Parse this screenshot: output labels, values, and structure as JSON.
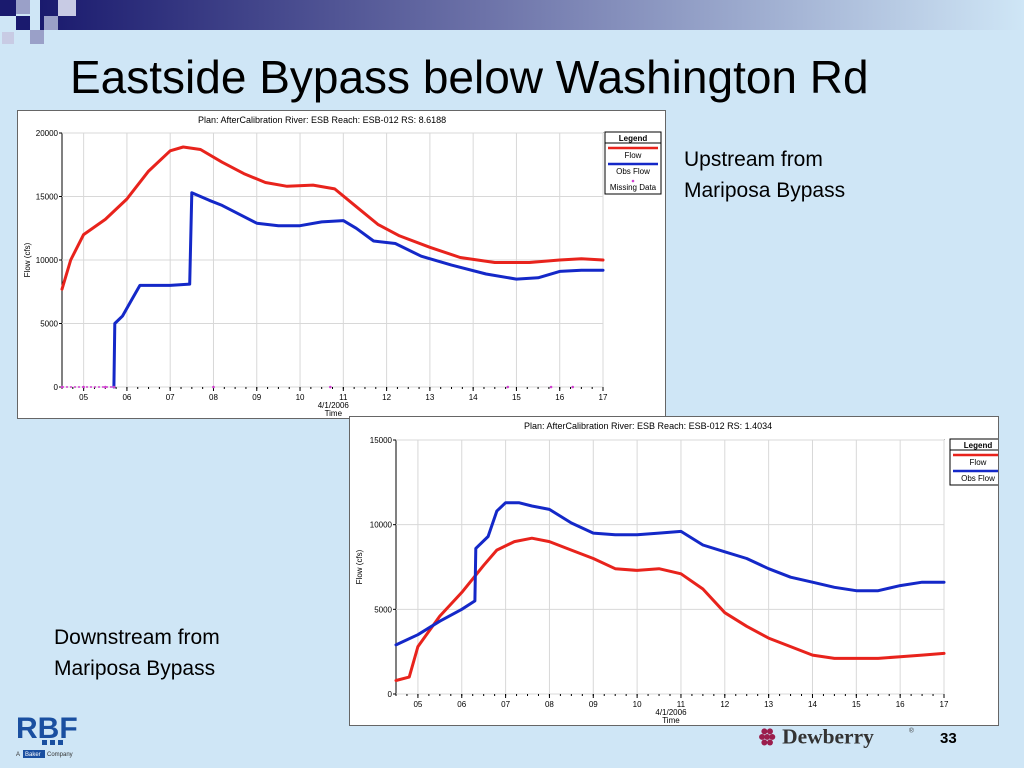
{
  "slide": {
    "title": "Eastside Bypass below Washington Rd",
    "caption_upstream": [
      "Upstream from",
      "Mariposa Bypass"
    ],
    "caption_downstream": [
      "Downstream from",
      "Mariposa Bypass"
    ],
    "page_number": "33",
    "rbf": {
      "logo_text": "RBF",
      "tagline_prefix": "A",
      "tagline_brand": "Baker",
      "tagline_suffix": "Company"
    },
    "dewberry": {
      "logo_text": "Dewberry",
      "registered_mark": "®"
    }
  },
  "colors": {
    "background": "#cfe6f6",
    "flow": "#e8231c",
    "obs_flow": "#1428c8",
    "missing": "#d040d0",
    "title_bar": "#1a1a6e"
  },
  "chart_data": [
    {
      "type": "line",
      "title": "Plan: AfterCalibration    River: ESB    Reach: ESB-012    RS: 8.6188",
      "xlabel": "Time",
      "date_label": "4/1/2006",
      "ylabel": "Flow (cfs)",
      "x_ticks": [
        "05",
        "06",
        "07",
        "08",
        "09",
        "10",
        "11",
        "12",
        "13",
        "14",
        "15",
        "16",
        "17"
      ],
      "xlim": [
        4.5,
        17
      ],
      "ylim": [
        0,
        20000
      ],
      "y_ticks": [
        0,
        5000,
        10000,
        15000,
        20000
      ],
      "grid": true,
      "legend_title": "Legend",
      "legend_position": "top-right",
      "series": [
        {
          "name": "Flow",
          "color": "#e8231c",
          "x": [
            4.5,
            4.7,
            5.0,
            5.5,
            6.0,
            6.5,
            7.0,
            7.3,
            7.7,
            8.2,
            8.7,
            9.2,
            9.7,
            10.3,
            10.8,
            11.3,
            11.8,
            12.3,
            13.0,
            13.7,
            14.5,
            15.3,
            16.0,
            16.5,
            17.0
          ],
          "y": [
            7700,
            10000,
            12000,
            13200,
            14800,
            17000,
            18600,
            18900,
            18700,
            17700,
            16800,
            16100,
            15800,
            15900,
            15600,
            14200,
            12800,
            11900,
            11000,
            10200,
            9800,
            9800,
            10000,
            10100,
            10000
          ]
        },
        {
          "name": "Obs Flow",
          "color": "#1428c8",
          "x": [
            5.7,
            5.72,
            5.9,
            6.1,
            6.3,
            6.5,
            7.0,
            7.45,
            7.5,
            7.9,
            8.2,
            8.6,
            9.0,
            9.5,
            10.0,
            10.5,
            11.0,
            11.3,
            11.7,
            12.2,
            12.8,
            13.5,
            14.3,
            15.0,
            15.5,
            16.0,
            16.5,
            17.0
          ],
          "y": [
            0,
            5000,
            5600,
            6800,
            8000,
            8000,
            8000,
            8100,
            15300,
            14700,
            14300,
            13600,
            12900,
            12700,
            12700,
            13000,
            13100,
            12500,
            11500,
            11300,
            10300,
            9600,
            8900,
            8500,
            8600,
            9100,
            9200,
            9200
          ]
        },
        {
          "name": "Missing Data",
          "color": "#d040d0",
          "marker": "dot",
          "x": [
            4.5,
            5.0,
            5.5,
            5.7,
            8.0,
            10.7,
            14.8,
            15.8,
            16.3
          ],
          "y": [
            0,
            0,
            0,
            0,
            0,
            0,
            0,
            0,
            0
          ]
        }
      ]
    },
    {
      "type": "line",
      "title": "Plan: AfterCalibration    River: ESB    Reach: ESB-012    RS: 1.4034",
      "xlabel": "Time",
      "date_label": "4/1/2006",
      "ylabel": "Flow (cfs)",
      "x_ticks": [
        "05",
        "06",
        "07",
        "08",
        "09",
        "10",
        "11",
        "12",
        "13",
        "14",
        "15",
        "16",
        "17"
      ],
      "xlim": [
        4.5,
        17
      ],
      "ylim": [
        0,
        15000
      ],
      "y_ticks": [
        0,
        5000,
        10000,
        15000
      ],
      "grid": true,
      "legend_title": "Legend",
      "legend_position": "top-right",
      "series": [
        {
          "name": "Flow",
          "color": "#e8231c",
          "x": [
            4.5,
            4.8,
            5.0,
            5.5,
            6.0,
            6.5,
            6.8,
            7.2,
            7.6,
            8.0,
            8.5,
            9.0,
            9.5,
            10.0,
            10.5,
            11.0,
            11.5,
            12.0,
            12.5,
            13.0,
            13.5,
            14.0,
            14.5,
            15.0,
            15.5,
            16.0,
            16.5,
            17.0
          ],
          "y": [
            800,
            1000,
            2800,
            4600,
            6000,
            7600,
            8500,
            9000,
            9200,
            9000,
            8500,
            8000,
            7400,
            7300,
            7400,
            7100,
            6200,
            4800,
            4000,
            3300,
            2800,
            2300,
            2100,
            2100,
            2100,
            2200,
            2300,
            2400
          ]
        },
        {
          "name": "Obs Flow",
          "color": "#1428c8",
          "x": [
            4.5,
            5.0,
            5.5,
            6.0,
            6.3,
            6.32,
            6.6,
            6.8,
            7.0,
            7.3,
            7.6,
            8.0,
            8.5,
            9.0,
            9.5,
            10.0,
            10.5,
            11.0,
            11.5,
            12.0,
            12.5,
            13.0,
            13.5,
            14.0,
            14.5,
            15.0,
            15.5,
            16.0,
            16.5,
            17.0
          ],
          "y": [
            2900,
            3500,
            4300,
            5000,
            5500,
            8600,
            9300,
            10800,
            11300,
            11300,
            11100,
            10900,
            10100,
            9500,
            9400,
            9400,
            9500,
            9600,
            8800,
            8400,
            8000,
            7400,
            6900,
            6600,
            6300,
            6100,
            6100,
            6400,
            6600,
            6600
          ]
        }
      ]
    }
  ]
}
